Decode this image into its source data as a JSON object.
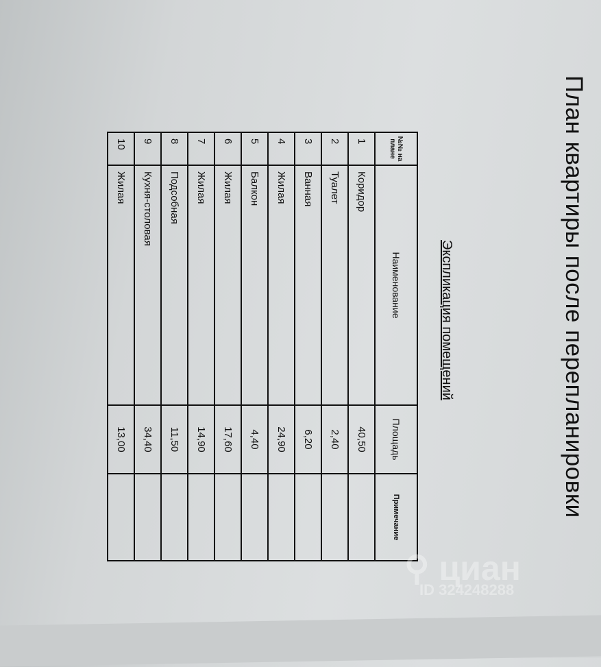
{
  "title": "План квартиры после перепланировки",
  "subtitle": "Экспликация помещений",
  "table": {
    "headers": [
      "№№ на плане",
      "Наименование",
      "Площадь",
      "Примечание"
    ],
    "rows": [
      {
        "n": "1",
        "name": "Коридор",
        "area": "40,50",
        "note": ""
      },
      {
        "n": "2",
        "name": "Туалет",
        "area": "2,40",
        "note": ""
      },
      {
        "n": "3",
        "name": "Ванная",
        "area": "6,20",
        "note": ""
      },
      {
        "n": "4",
        "name": "Жилая",
        "area": "24,90",
        "note": ""
      },
      {
        "n": "5",
        "name": "Балкон",
        "area": "4,40",
        "note": ""
      },
      {
        "n": "6",
        "name": "Жилая",
        "area": "17,60",
        "note": ""
      },
      {
        "n": "7",
        "name": "Жилая",
        "area": "14,90",
        "note": ""
      },
      {
        "n": "8",
        "name": "Подсобная",
        "area": "11,50",
        "note": ""
      },
      {
        "n": "9",
        "name": "Кухня-столовая",
        "area": "34,40",
        "note": ""
      },
      {
        "n": "10",
        "name": "Жилая",
        "area": "13,00",
        "note": ""
      }
    ]
  },
  "watermark": {
    "brand": "циан",
    "id": "ID 324248288"
  }
}
